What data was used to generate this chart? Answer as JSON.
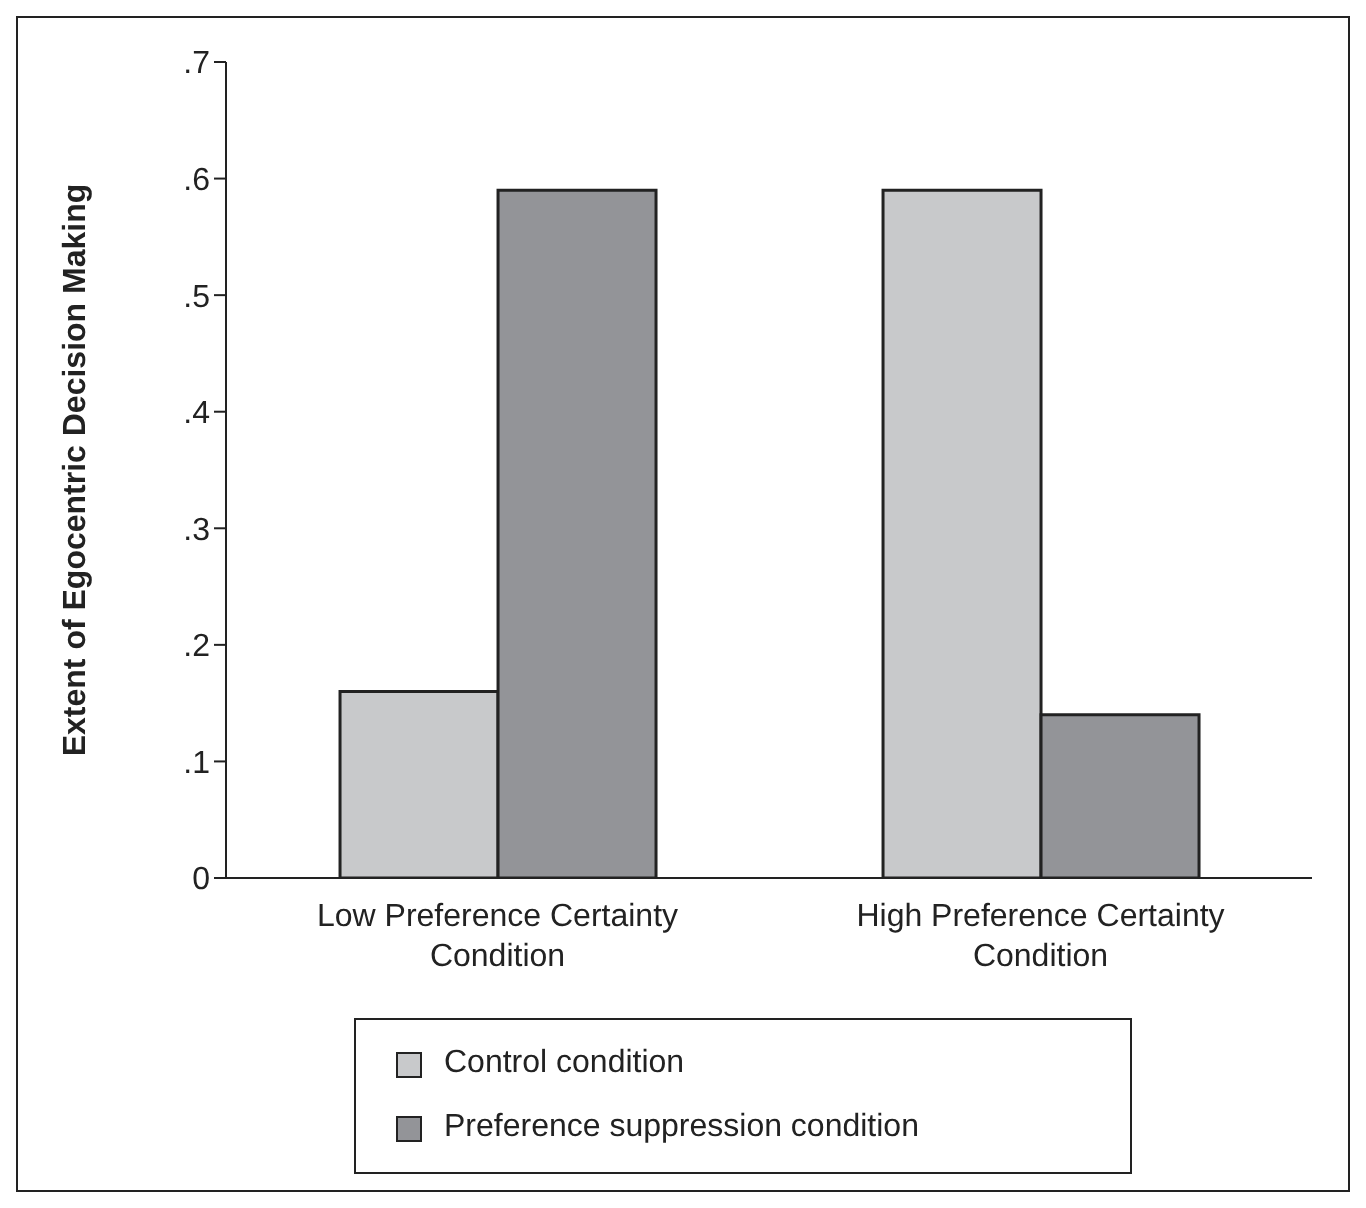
{
  "chart_data": {
    "type": "bar",
    "ylabel": "Extent of Egocentric Decision Making",
    "categories": [
      "Low Preference Certainty Condition",
      "High Preference Certainty Condition"
    ],
    "series": [
      {
        "name": "Control condition",
        "color": "#c8c9cb",
        "values": [
          0.16,
          0.59
        ]
      },
      {
        "name": "Preference suppression condition",
        "color": "#939498",
        "values": [
          0.59,
          0.14
        ]
      }
    ],
    "ylim": [
      0,
      0.7
    ],
    "yticks": [
      0,
      {
        "value": 0.1,
        "label": ".1"
      },
      {
        "value": 0.2,
        "label": ".2"
      },
      {
        "value": 0.3,
        "label": ".3"
      },
      {
        "value": 0.4,
        "label": ".4"
      },
      {
        "value": 0.5,
        "label": ".5"
      },
      {
        "value": 0.6,
        "label": ".6"
      },
      {
        "value": 0.7,
        "label": ".7"
      }
    ],
    "grid": false,
    "legend": "bottom"
  }
}
